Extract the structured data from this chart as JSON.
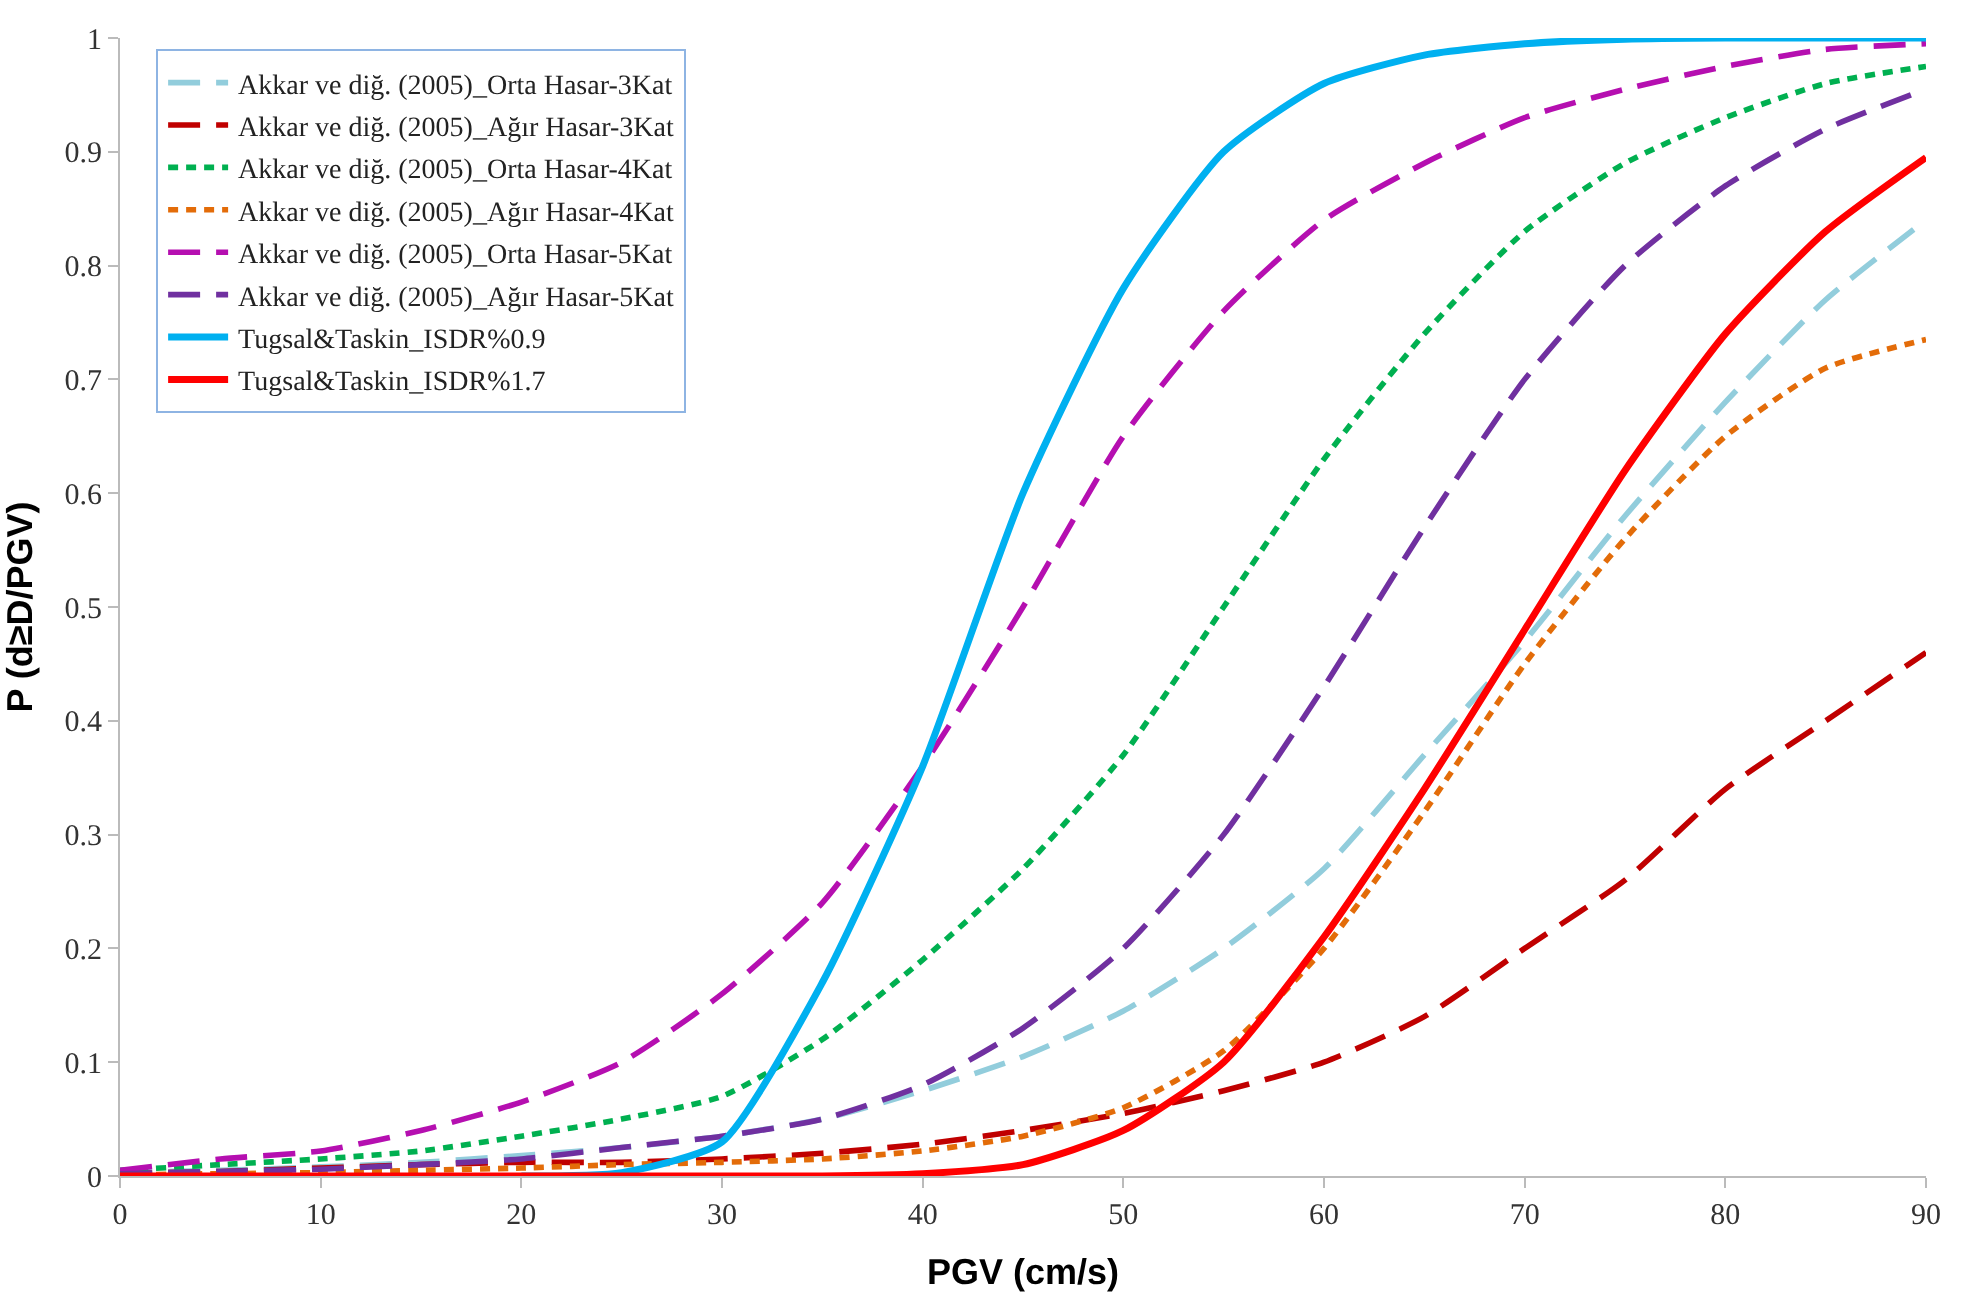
{
  "chart_data": {
    "type": "line",
    "xlabel": "PGV (cm/s)",
    "ylabel": "P (d≥D/PGV)",
    "x": [
      0,
      5,
      10,
      15,
      20,
      25,
      30,
      35,
      40,
      45,
      50,
      55,
      60,
      65,
      70,
      75,
      80,
      85,
      90
    ],
    "series": [
      {
        "name": "Akkar ve diğ. (2005)_Orta Hasar-3Kat",
        "color": "#92cddc",
        "line_style": "dashed",
        "values": [
          0.003,
          0.005,
          0.008,
          0.012,
          0.018,
          0.025,
          0.035,
          0.05,
          0.075,
          0.105,
          0.145,
          0.2,
          0.27,
          0.37,
          0.47,
          0.58,
          0.68,
          0.77,
          0.84
        ]
      },
      {
        "name": "Akkar ve diğ. (2005)_Ağır Hasar-3Kat",
        "color": "#c00000",
        "line_style": "dashed",
        "values": [
          0.002,
          0.004,
          0.007,
          0.01,
          0.012,
          0.012,
          0.015,
          0.02,
          0.028,
          0.04,
          0.055,
          0.075,
          0.1,
          0.14,
          0.2,
          0.26,
          0.34,
          0.4,
          0.46
        ]
      },
      {
        "name": "Akkar ve diğ. (2005)_Orta Hasar-4Kat",
        "color": "#00b050",
        "line_style": "dotted",
        "values": [
          0.005,
          0.01,
          0.015,
          0.022,
          0.035,
          0.05,
          0.07,
          0.12,
          0.19,
          0.27,
          0.37,
          0.5,
          0.63,
          0.74,
          0.83,
          0.89,
          0.93,
          0.96,
          0.975
        ]
      },
      {
        "name": "Akkar ve diğ. (2005)_Ağır Hasar-4Kat",
        "color": "#e36c09",
        "line_style": "dotted",
        "values": [
          0.001,
          0.002,
          0.003,
          0.005,
          0.007,
          0.01,
          0.012,
          0.015,
          0.022,
          0.035,
          0.06,
          0.11,
          0.2,
          0.32,
          0.45,
          0.56,
          0.65,
          0.71,
          0.735
        ]
      },
      {
        "name": "Akkar ve diğ. (2005)_Orta Hasar-5Kat",
        "color": "#b50fb0",
        "line_style": "dashed",
        "values": [
          0.005,
          0.015,
          0.022,
          0.04,
          0.065,
          0.1,
          0.16,
          0.24,
          0.36,
          0.5,
          0.65,
          0.76,
          0.84,
          0.89,
          0.93,
          0.955,
          0.975,
          0.99,
          0.995
        ]
      },
      {
        "name": "Akkar ve diğ. (2005)_Ağır Hasar-5Kat",
        "color": "#7030a0",
        "line_style": "dashed",
        "values": [
          0.002,
          0.004,
          0.006,
          0.01,
          0.015,
          0.025,
          0.035,
          0.05,
          0.08,
          0.13,
          0.2,
          0.3,
          0.43,
          0.57,
          0.7,
          0.8,
          0.87,
          0.92,
          0.955
        ]
      },
      {
        "name": "Tugsal&Taskin_ISDR%0.9",
        "color": "#00b0f0",
        "line_style": "solid",
        "values": [
          null,
          null,
          null,
          null,
          0,
          0.003,
          0.03,
          0.17,
          0.36,
          0.6,
          0.78,
          0.9,
          0.96,
          0.985,
          0.995,
          0.999,
          1,
          1,
          1
        ]
      },
      {
        "name": "Tugsal&Taskin_ISDR%1.7",
        "color": "#ff0000",
        "line_style": "solid",
        "values": [
          0,
          0,
          0,
          0,
          0,
          0,
          0,
          0,
          0.002,
          0.01,
          0.04,
          0.1,
          0.21,
          0.34,
          0.48,
          0.62,
          0.74,
          0.83,
          0.895
        ]
      }
    ],
    "xlim": [
      0,
      90
    ],
    "xticks": [
      0,
      10,
      20,
      30,
      40,
      50,
      60,
      70,
      80,
      90
    ],
    "ylim": [
      0,
      1
    ],
    "yticks": [
      0,
      0.1,
      0.2,
      0.3,
      0.4,
      0.5,
      0.6,
      0.7,
      0.8,
      0.9,
      1
    ],
    "grid": false,
    "legend": "top left",
    "marker": "none"
  }
}
